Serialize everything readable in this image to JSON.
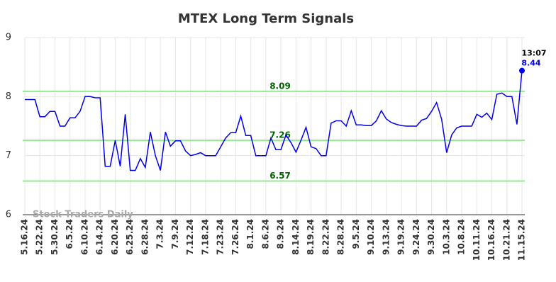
{
  "chart_data": {
    "type": "line",
    "title": "MTEX Long Term Signals",
    "categories": [
      "5.16.24",
      null,
      null,
      "5.22.24",
      null,
      null,
      "5.30.24",
      null,
      null,
      "6.5.24",
      null,
      null,
      "6.10.24",
      null,
      null,
      "6.14.24",
      null,
      null,
      "6.20.24",
      null,
      null,
      "6.25.24",
      null,
      null,
      "6.28.24",
      null,
      null,
      "7.3.24",
      null,
      null,
      "7.9.24",
      null,
      null,
      "7.12.24",
      null,
      null,
      "7.18.24",
      null,
      null,
      "7.23.24",
      null,
      null,
      "7.26.24",
      null,
      null,
      "8.1.24",
      null,
      null,
      "8.6.24",
      null,
      null,
      "8.9.24",
      null,
      null,
      "8.14.24",
      null,
      null,
      "8.19.24",
      null,
      null,
      "8.22.24",
      null,
      null,
      "8.28.24",
      null,
      null,
      "9.5.24",
      null,
      null,
      "9.10.24",
      null,
      null,
      "9.13.24",
      null,
      null,
      "9.19.24",
      null,
      null,
      "9.24.24",
      null,
      null,
      "9.30.24",
      null,
      null,
      "10.3.24",
      null,
      null,
      "10.8.24",
      null,
      null,
      "10.11.24",
      null,
      null,
      "10.16.24",
      null,
      null,
      "10.21.24",
      null,
      null,
      "11.15.24"
    ],
    "values": [
      7.95,
      7.95,
      7.95,
      7.66,
      7.66,
      7.75,
      7.75,
      7.5,
      7.5,
      7.64,
      7.64,
      7.75,
      8.0,
      8.0,
      7.98,
      7.98,
      6.82,
      6.82,
      7.26,
      6.82,
      7.7,
      6.75,
      6.75,
      6.95,
      6.8,
      7.4,
      7.0,
      6.75,
      7.4,
      7.16,
      7.25,
      7.25,
      7.08,
      7.0,
      7.02,
      7.05,
      7.0,
      7.0,
      7.0,
      7.15,
      7.3,
      7.39,
      7.39,
      7.67,
      7.34,
      7.34,
      7.0,
      7.0,
      7.0,
      7.3,
      7.1,
      7.1,
      7.35,
      7.22,
      7.06,
      7.26,
      7.48,
      7.15,
      7.12,
      7.0,
      7.0,
      7.55,
      7.59,
      7.59,
      7.5,
      7.76,
      7.52,
      7.52,
      7.51,
      7.51,
      7.59,
      7.76,
      7.62,
      7.56,
      7.53,
      7.51,
      7.5,
      7.5,
      7.5,
      7.6,
      7.63,
      7.75,
      7.9,
      7.62,
      7.05,
      7.35,
      7.47,
      7.5,
      7.5,
      7.5,
      7.7,
      7.65,
      7.72,
      7.61,
      8.04,
      8.06,
      8.0,
      8.0,
      7.53,
      8.44
    ],
    "color": "#0000ee",
    "levels": [
      8.09,
      7.26,
      6.57
    ],
    "level_color": "#90ee90",
    "level_label_color": "#006400",
    "last_time": "13:07",
    "watermark": "Stock Traders Daily",
    "ylim": [
      6,
      9
    ],
    "yticks": [
      6,
      7,
      8,
      9
    ],
    "grid": true
  }
}
